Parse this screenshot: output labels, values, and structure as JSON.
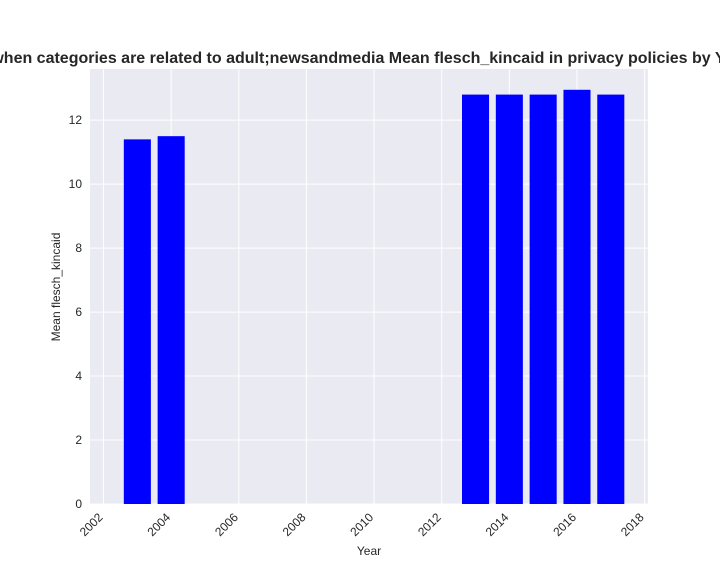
{
  "chart_data": {
    "type": "bar",
    "title": "when categories are related to adult;newsandmedia Mean flesch_kincaid in privacy policies by Year",
    "xlabel": "Year",
    "ylabel": "Mean flesch_kincaid",
    "x": [
      2003,
      2004,
      2013,
      2014,
      2015,
      2016,
      2017
    ],
    "values": [
      11.4,
      11.5,
      12.8,
      12.8,
      12.8,
      12.95,
      12.8
    ],
    "bar_width_years": 0.8,
    "xlim": [
      2001.6,
      2018.1
    ],
    "ylim": [
      0,
      13.6
    ],
    "xticks": [
      "2002",
      "2004",
      "2006",
      "2008",
      "2010",
      "2012",
      "2014",
      "2016",
      "2018"
    ],
    "yticks": [
      "0",
      "2",
      "4",
      "6",
      "8",
      "10",
      "12"
    ],
    "xtick_rotation": 45,
    "bar_color": "#0000ff",
    "background": "#eaeaf2",
    "grid": true,
    "grid_color": "#ffffff"
  }
}
